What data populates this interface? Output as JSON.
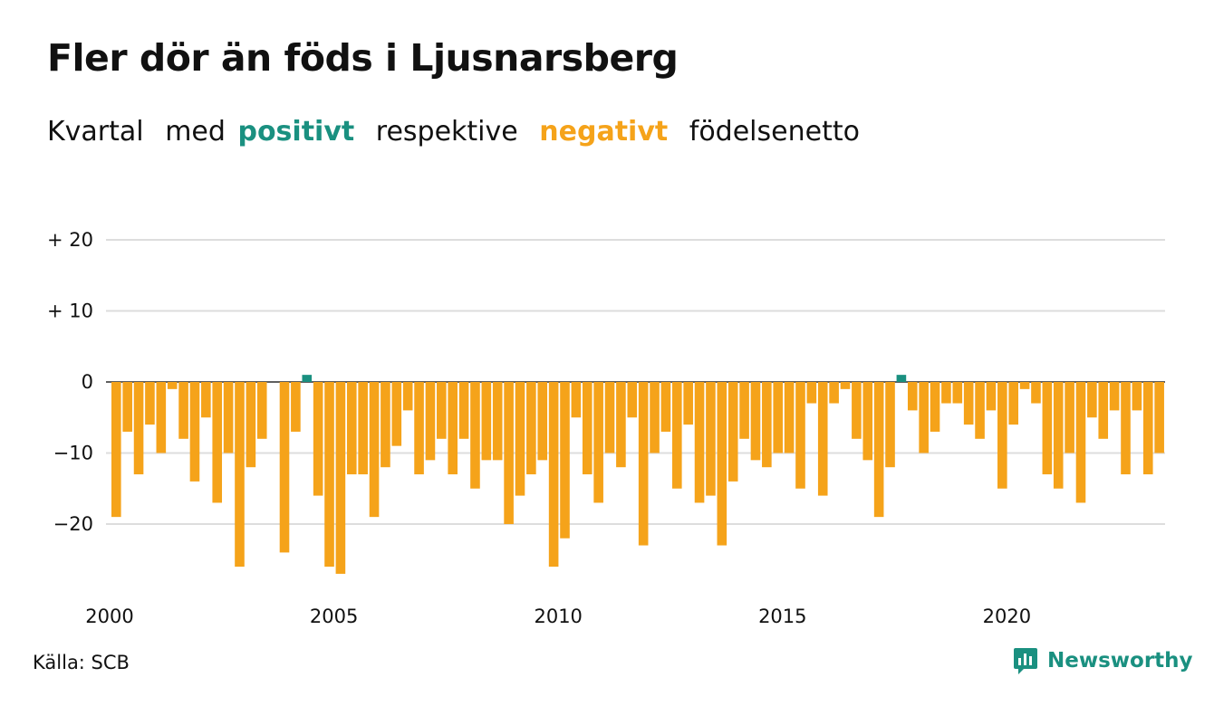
{
  "header": {
    "title": "Fler dör än föds i Ljusnarsberg",
    "subtitle_prefix": "Kvartal",
    "subtitle_med": "med",
    "subtitle_positive": "positivt",
    "subtitle_respective": "respektive",
    "subtitle_negative": "negativt",
    "subtitle_suffix": "födelsenetto"
  },
  "footer": {
    "source": "Källa: SCB",
    "brand": "Newsworthy",
    "brand_icon": "newsworthy-logo-icon"
  },
  "colors": {
    "positive": "#1a9080",
    "negative": "#f5a31a",
    "grid": "#dddddd",
    "text": "#111111"
  },
  "chart_data": {
    "type": "bar",
    "title": "Fler dör än föds i Ljusnarsberg",
    "xlabel": "",
    "ylabel": "",
    "x_start": "2000 Q1",
    "x_tick_labels": [
      "2000",
      "2005",
      "2010",
      "2015",
      "2020"
    ],
    "y_ticks": [
      20,
      10,
      0,
      -10,
      -20
    ],
    "y_tick_labels": [
      "+ 20",
      "+ 10",
      "0",
      "−10",
      "−20"
    ],
    "ylim": [
      -28,
      22
    ],
    "grid": true,
    "legend": "in subtitle",
    "values": [
      -19,
      -7,
      -13,
      -6,
      -10,
      -1,
      -8,
      -14,
      -5,
      -17,
      -10,
      -26,
      -12,
      -8,
      0,
      -24,
      -7,
      1,
      -16,
      -26,
      -27,
      -13,
      -13,
      -19,
      -12,
      -9,
      -4,
      -13,
      -11,
      -8,
      -13,
      -8,
      -15,
      -11,
      -11,
      -20,
      -16,
      -13,
      -11,
      -26,
      -22,
      -5,
      -13,
      -17,
      -10,
      -12,
      -5,
      -23,
      -10,
      -7,
      -15,
      -6,
      -17,
      -16,
      -23,
      -14,
      -8,
      -11,
      -12,
      -10,
      -10,
      -15,
      -3,
      -16,
      -3,
      -1,
      -8,
      -11,
      -19,
      -12,
      1,
      -4,
      -10,
      -7,
      -3,
      -3,
      -6,
      -8,
      -4,
      -15,
      -6,
      -1,
      -3,
      -13,
      -15,
      -10,
      -17,
      -5,
      -8,
      -4,
      -13,
      -4,
      -13,
      -10
    ]
  }
}
